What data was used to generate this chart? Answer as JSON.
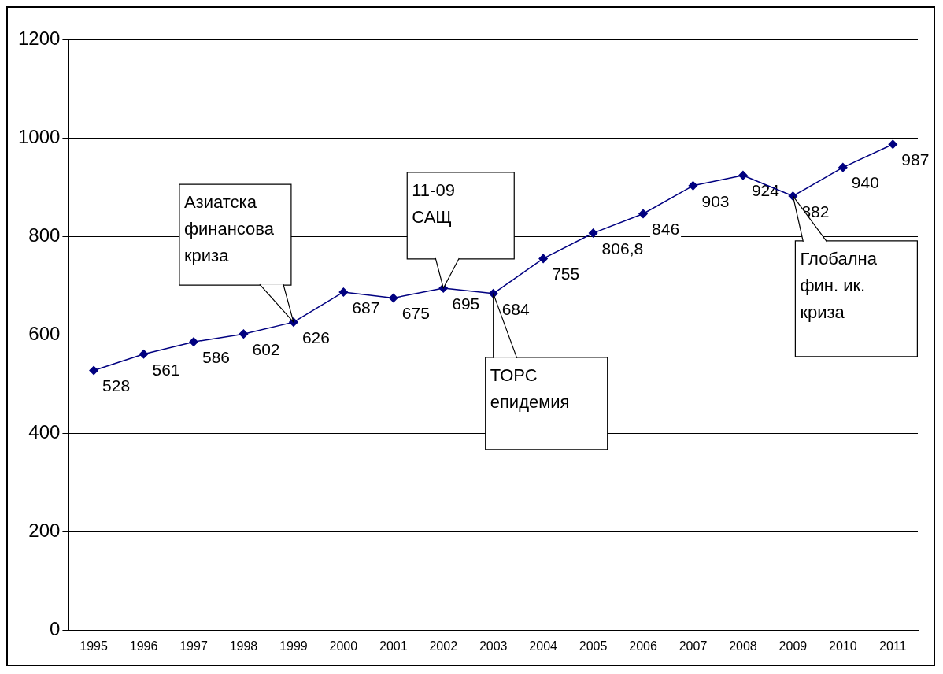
{
  "chart_data": {
    "type": "line",
    "categories": [
      "1995",
      "1996",
      "1997",
      "1998",
      "1999",
      "2000",
      "2001",
      "2002",
      "2003",
      "2004",
      "2005",
      "2006",
      "2007",
      "2008",
      "2009",
      "2010",
      "2011"
    ],
    "series": [
      {
        "color": "#000080",
        "values": [
          528,
          561,
          586,
          602,
          626,
          687,
          675,
          695,
          684,
          755,
          806.8,
          846,
          903,
          924,
          882,
          940,
          987
        ],
        "value_labels": [
          "528",
          "561",
          "586",
          "602",
          "626",
          "687",
          "675",
          "695",
          "684",
          "755",
          "806,8",
          "846",
          "903",
          "924",
          "882",
          "940",
          "987"
        ]
      }
    ],
    "ylim": [
      0,
      1200
    ],
    "yticks": [
      0,
      200,
      400,
      600,
      800,
      1000,
      1200
    ],
    "grid": "y",
    "legend": false,
    "marker": "diamond",
    "line_style": "solid",
    "annotations": [
      "Азиатска финансова криза",
      "11-09 САЩ",
      "ТОРС епидемия",
      "Глобална фин. ик. криза"
    ]
  }
}
